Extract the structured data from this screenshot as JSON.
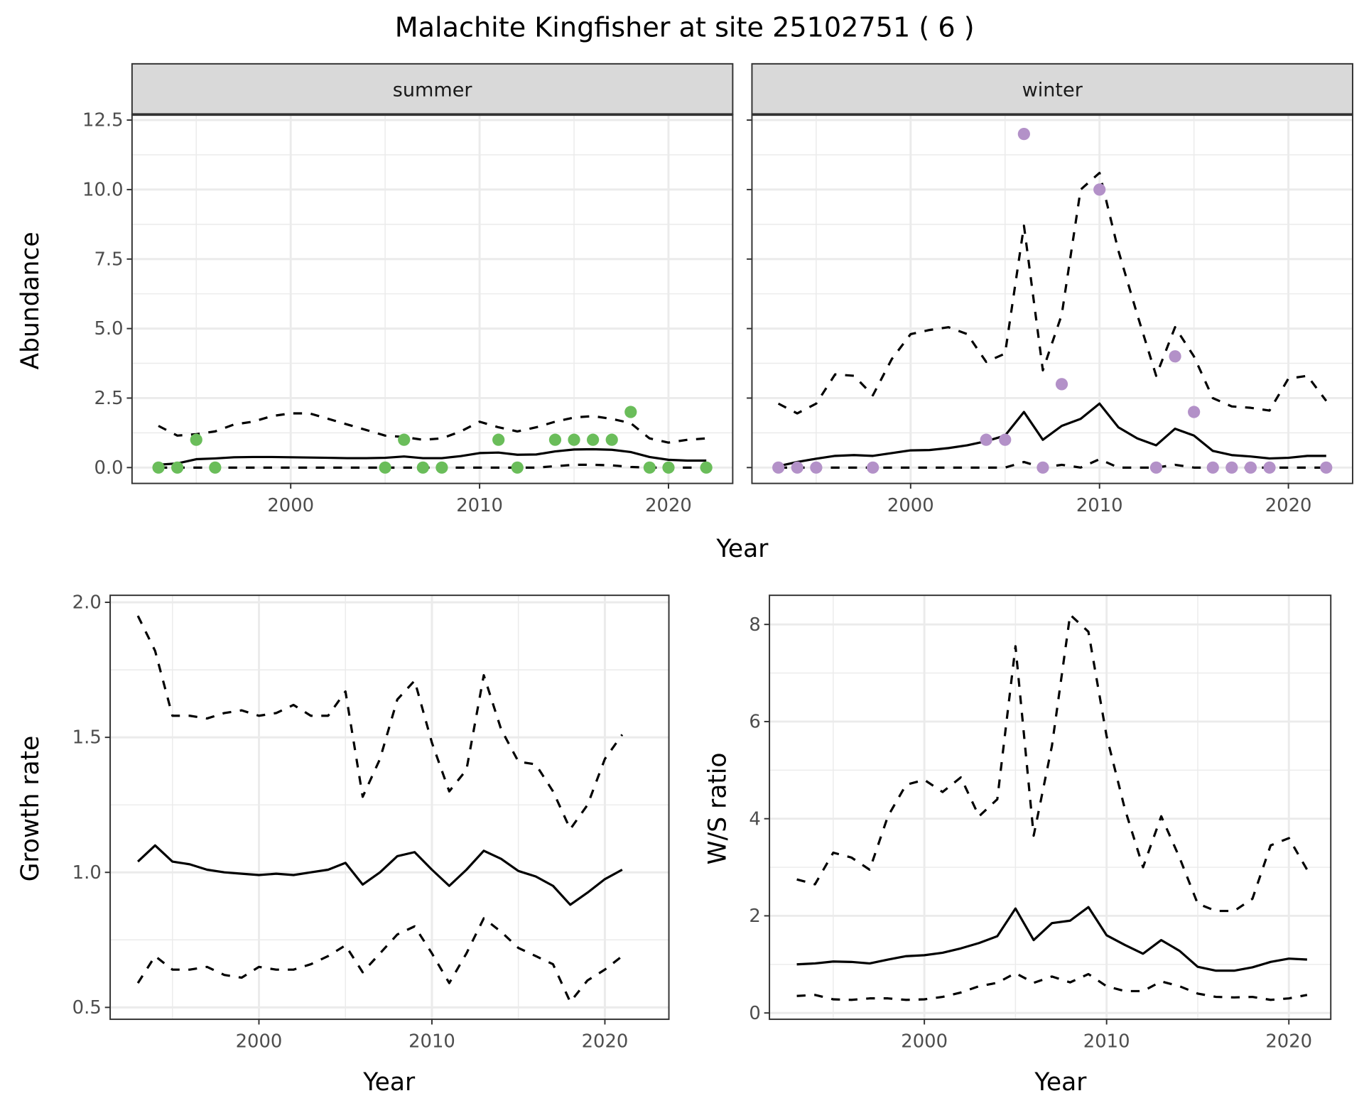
{
  "title": "Malachite Kingfisher at site 25102751 ( 6 )",
  "colors": {
    "summer": "#6abd5a",
    "winter": "#b391c8",
    "line": "#000000",
    "grid": "#ebebeb",
    "strip": "#d9d9d9"
  },
  "chart_data": [
    {
      "type": "line",
      "panel": "summer",
      "strip_label": "summer",
      "xlabel": "Year",
      "ylabel": "Abundance",
      "xlim": [
        1991.6,
        2023.4
      ],
      "ylim": [
        -0.57,
        12.7
      ],
      "xticks": [
        2000,
        2010,
        2020
      ],
      "xtick_labels": [
        "2000",
        "2010",
        "2020"
      ],
      "yticks": [
        0,
        2.5,
        5,
        7.5,
        10,
        12.5
      ],
      "ytick_labels": [
        "0.0",
        "2.5",
        "5.0",
        "7.5",
        "10.0",
        "12.5"
      ],
      "x": [
        1993,
        1994,
        1995,
        1996,
        1997,
        1998,
        1999,
        2000,
        2001,
        2002,
        2003,
        2004,
        2005,
        2006,
        2007,
        2008,
        2009,
        2010,
        2011,
        2012,
        2013,
        2014,
        2015,
        2016,
        2017,
        2018,
        2019,
        2020,
        2021,
        2022
      ],
      "series": [
        {
          "name": "mean",
          "style": "solid",
          "values": [
            0.1,
            0.15,
            0.3,
            0.33,
            0.37,
            0.38,
            0.38,
            0.37,
            0.36,
            0.35,
            0.34,
            0.34,
            0.35,
            0.4,
            0.34,
            0.34,
            0.41,
            0.52,
            0.54,
            0.46,
            0.47,
            0.58,
            0.65,
            0.66,
            0.64,
            0.56,
            0.38,
            0.28,
            0.25,
            0.25
          ]
        },
        {
          "name": "upper",
          "style": "dashed",
          "values": [
            1.5,
            1.15,
            1.2,
            1.3,
            1.55,
            1.65,
            1.85,
            1.95,
            1.95,
            1.75,
            1.55,
            1.35,
            1.15,
            1.1,
            1.0,
            1.05,
            1.3,
            1.65,
            1.45,
            1.3,
            1.45,
            1.65,
            1.8,
            1.85,
            1.75,
            1.6,
            1.05,
            0.9,
            1.0,
            1.05
          ]
        },
        {
          "name": "lower",
          "style": "dashed",
          "values": [
            0,
            0,
            0,
            0,
            0,
            0,
            0,
            0,
            0,
            0,
            0,
            0,
            0,
            0,
            0,
            0,
            0,
            0,
            0,
            0,
            0,
            0.05,
            0.1,
            0.1,
            0.08,
            0.02,
            0,
            0,
            0,
            0
          ]
        }
      ],
      "points": {
        "x": [
          1993,
          1994,
          1995,
          1996,
          2005,
          2006,
          2007,
          2008,
          2011,
          2012,
          2014,
          2015,
          2016,
          2017,
          2018,
          2019,
          2020,
          2022
        ],
        "y": [
          0,
          0,
          1,
          0,
          0,
          1,
          0,
          0,
          1,
          0,
          1,
          1,
          1,
          1,
          2,
          0,
          0,
          0
        ]
      }
    },
    {
      "type": "line",
      "panel": "winter",
      "strip_label": "winter",
      "xlabel": "Year",
      "ylabel": "Abundance",
      "xlim": [
        1991.6,
        2023.4
      ],
      "ylim": [
        -0.57,
        12.7
      ],
      "xticks": [
        2000,
        2010,
        2020
      ],
      "xtick_labels": [
        "2000",
        "2010",
        "2020"
      ],
      "yticks": [
        0,
        2.5,
        5,
        7.5,
        10,
        12.5
      ],
      "ytick_labels": [],
      "x": [
        1993,
        1994,
        1995,
        1996,
        1997,
        1998,
        1999,
        2000,
        2001,
        2002,
        2003,
        2004,
        2005,
        2006,
        2007,
        2008,
        2009,
        2010,
        2011,
        2012,
        2013,
        2014,
        2015,
        2016,
        2017,
        2018,
        2019,
        2020,
        2021,
        2022
      ],
      "series": [
        {
          "name": "mean",
          "style": "solid",
          "values": [
            0.05,
            0.2,
            0.32,
            0.42,
            0.45,
            0.42,
            0.52,
            0.62,
            0.63,
            0.7,
            0.8,
            0.95,
            1.15,
            2.0,
            1.0,
            1.5,
            1.75,
            2.3,
            1.45,
            1.05,
            0.8,
            1.4,
            1.15,
            0.6,
            0.45,
            0.4,
            0.33,
            0.35,
            0.42,
            0.42
          ]
        },
        {
          "name": "upper",
          "style": "dashed",
          "values": [
            2.3,
            1.95,
            2.3,
            3.35,
            3.3,
            2.6,
            3.9,
            4.8,
            4.95,
            5.05,
            4.8,
            3.8,
            4.1,
            8.7,
            3.5,
            5.5,
            10.0,
            10.6,
            7.8,
            5.5,
            3.3,
            5.05,
            4.0,
            2.5,
            2.2,
            2.15,
            2.05,
            3.2,
            3.3,
            2.4
          ]
        },
        {
          "name": "lower",
          "style": "dashed",
          "values": [
            0,
            0,
            0,
            0,
            0,
            0,
            0,
            0,
            0,
            0,
            0,
            0,
            0,
            0.2,
            0,
            0.1,
            0,
            0.3,
            0,
            0,
            0,
            0.1,
            0,
            0,
            0,
            0,
            0,
            0,
            0,
            0
          ]
        }
      ],
      "points": {
        "x": [
          1993,
          1994,
          1995,
          1998,
          2004,
          2005,
          2006,
          2007,
          2008,
          2010,
          2013,
          2014,
          2015,
          2016,
          2017,
          2018,
          2019,
          2022
        ],
        "y": [
          0,
          0,
          0,
          0,
          1,
          1,
          12,
          0,
          3,
          10,
          0,
          4,
          2,
          0,
          0,
          0,
          0,
          0
        ]
      }
    },
    {
      "type": "line",
      "panel": "growth",
      "xlabel": "Year",
      "ylabel": "Growth rate",
      "xlim": [
        1991.4,
        2023.7
      ],
      "ylim": [
        0.456,
        2.026
      ],
      "xticks": [
        2000,
        2010,
        2020
      ],
      "xtick_labels": [
        "2000",
        "2010",
        "2020"
      ],
      "yticks": [
        0.5,
        1.0,
        1.5,
        2.0
      ],
      "ytick_labels": [
        "0.5",
        "1.0",
        "1.5",
        "2.0"
      ],
      "x": [
        1993,
        1994,
        1995,
        1996,
        1997,
        1998,
        1999,
        2000,
        2001,
        2002,
        2003,
        2004,
        2005,
        2006,
        2007,
        2008,
        2009,
        2010,
        2011,
        2012,
        2013,
        2014,
        2015,
        2016,
        2017,
        2018,
        2019,
        2020,
        2021
      ],
      "series": [
        {
          "name": "mean",
          "style": "solid",
          "values": [
            1.04,
            1.1,
            1.04,
            1.03,
            1.01,
            1.0,
            0.995,
            0.99,
            0.995,
            0.99,
            1.0,
            1.01,
            1.035,
            0.955,
            1.0,
            1.06,
            1.075,
            1.01,
            0.95,
            1.01,
            1.08,
            1.05,
            1.005,
            0.985,
            0.95,
            0.88,
            0.925,
            0.975,
            1.01
          ]
        },
        {
          "name": "upper",
          "style": "dashed",
          "values": [
            1.95,
            1.82,
            1.58,
            1.58,
            1.57,
            1.59,
            1.6,
            1.58,
            1.59,
            1.62,
            1.58,
            1.58,
            1.67,
            1.28,
            1.42,
            1.64,
            1.71,
            1.48,
            1.3,
            1.38,
            1.73,
            1.53,
            1.41,
            1.4,
            1.3,
            1.16,
            1.25,
            1.42,
            1.51
          ]
        },
        {
          "name": "lower",
          "style": "dashed",
          "values": [
            0.59,
            0.69,
            0.64,
            0.64,
            0.65,
            0.62,
            0.61,
            0.65,
            0.64,
            0.64,
            0.66,
            0.69,
            0.73,
            0.63,
            0.7,
            0.77,
            0.8,
            0.7,
            0.59,
            0.7,
            0.83,
            0.78,
            0.72,
            0.69,
            0.66,
            0.52,
            0.6,
            0.64,
            0.69
          ]
        }
      ]
    },
    {
      "type": "line",
      "panel": "ratio",
      "xlabel": "Year",
      "ylabel": "W/S ratio",
      "xlim": [
        1991.5,
        2022.3
      ],
      "ylim": [
        -0.13,
        8.6
      ],
      "xticks": [
        2000,
        2010,
        2020
      ],
      "xtick_labels": [
        "2000",
        "2010",
        "2020"
      ],
      "yticks": [
        0,
        2,
        4,
        6,
        8
      ],
      "ytick_labels": [
        "0",
        "2",
        "4",
        "6",
        "8"
      ],
      "x": [
        1993,
        1994,
        1995,
        1996,
        1997,
        1998,
        1999,
        2000,
        2001,
        2002,
        2003,
        2004,
        2005,
        2006,
        2007,
        2008,
        2009,
        2010,
        2011,
        2012,
        2013,
        2014,
        2015,
        2016,
        2017,
        2018,
        2019,
        2020,
        2021
      ],
      "series": [
        {
          "name": "mean",
          "style": "solid",
          "values": [
            1.0,
            1.02,
            1.06,
            1.05,
            1.02,
            1.1,
            1.17,
            1.19,
            1.24,
            1.33,
            1.44,
            1.58,
            2.15,
            1.5,
            1.85,
            1.9,
            2.18,
            1.6,
            1.4,
            1.22,
            1.5,
            1.28,
            0.95,
            0.87,
            0.87,
            0.94,
            1.05,
            1.12,
            1.1
          ]
        },
        {
          "name": "upper",
          "style": "dashed",
          "values": [
            2.75,
            2.65,
            3.3,
            3.2,
            2.95,
            4.05,
            4.7,
            4.8,
            4.55,
            4.85,
            4.05,
            4.4,
            7.55,
            3.65,
            5.5,
            8.2,
            7.85,
            5.7,
            4.2,
            3.0,
            4.05,
            3.2,
            2.25,
            2.1,
            2.1,
            2.35,
            3.45,
            3.6,
            2.95
          ]
        },
        {
          "name": "lower",
          "style": "dashed",
          "values": [
            0.35,
            0.37,
            0.28,
            0.27,
            0.3,
            0.3,
            0.27,
            0.28,
            0.33,
            0.42,
            0.55,
            0.62,
            0.82,
            0.62,
            0.75,
            0.63,
            0.8,
            0.55,
            0.45,
            0.45,
            0.65,
            0.55,
            0.4,
            0.33,
            0.32,
            0.33,
            0.27,
            0.3,
            0.37
          ]
        }
      ]
    }
  ],
  "shared_xlabel_top": "Year"
}
